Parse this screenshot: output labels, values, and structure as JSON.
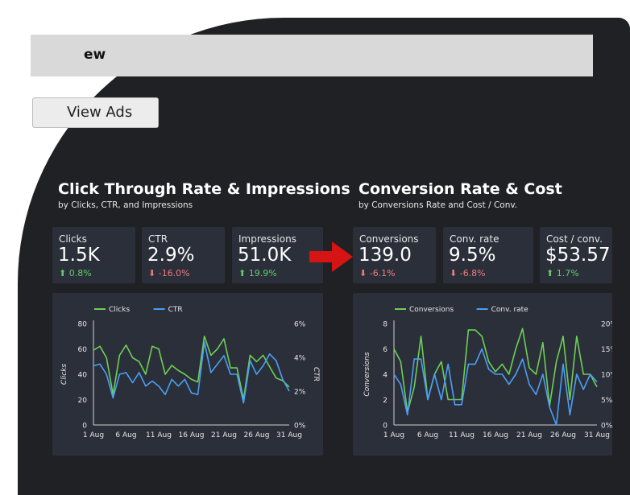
{
  "header": {
    "title_fragment": "ew",
    "view_ads_label": "View Ads"
  },
  "colors": {
    "panel": "#202124",
    "card": "#2b2f3a",
    "series_green": "#6ecf55",
    "series_blue": "#4a9ff5",
    "up": "#5fcf6b",
    "down": "#f07b7b",
    "arrow": "#d61414"
  },
  "sections": [
    {
      "title": "Click Through Rate & Impressions",
      "subtitle": "by Clicks, CTR, and Impressions",
      "scorecards": [
        {
          "label": "Clicks",
          "value": "1.5K",
          "change": "0.8%",
          "direction": "up"
        },
        {
          "label": "CTR",
          "value": "2.9%",
          "change": "-16.0%",
          "direction": "down"
        },
        {
          "label": "Impressions",
          "value": "51.0K",
          "change": "19.9%",
          "direction": "up"
        }
      ]
    },
    {
      "title": "Conversion Rate & Cost",
      "subtitle": "by Conversions Rate and Cost / Conv.",
      "scorecards": [
        {
          "label": "Conversions",
          "value": "139.0",
          "change": "-6.1%",
          "direction": "down"
        },
        {
          "label": "Conv. rate",
          "value": "9.5%",
          "change": "-6.8%",
          "direction": "down"
        },
        {
          "label": "Cost / conv.",
          "value": "$53.57",
          "change": "1.7%",
          "direction": "up"
        }
      ]
    }
  ],
  "chart_data": [
    {
      "type": "line",
      "x": [
        "1 Aug",
        "2 Aug",
        "3 Aug",
        "4 Aug",
        "5 Aug",
        "6 Aug",
        "7 Aug",
        "8 Aug",
        "9 Aug",
        "10 Aug",
        "11 Aug",
        "12 Aug",
        "13 Aug",
        "14 Aug",
        "15 Aug",
        "16 Aug",
        "17 Aug",
        "18 Aug",
        "19 Aug",
        "20 Aug",
        "21 Aug",
        "22 Aug",
        "23 Aug",
        "24 Aug",
        "25 Aug",
        "26 Aug",
        "27 Aug",
        "28 Aug",
        "29 Aug",
        "30 Aug",
        "31 Aug"
      ],
      "xticks": [
        "1 Aug",
        "6 Aug",
        "11 Aug",
        "16 Aug",
        "21 Aug",
        "26 Aug",
        "31 Aug"
      ],
      "ylabel": "Clicks",
      "y2label": "CTR",
      "ylim": [
        0,
        80
      ],
      "yticks": [
        "0",
        "20",
        "40",
        "60",
        "80"
      ],
      "y2lim": [
        0,
        6
      ],
      "y2ticks": [
        "0%",
        "2%",
        "4%",
        "6%"
      ],
      "legend": "top",
      "series": [
        {
          "name": "Clicks",
          "axis": "left",
          "color": "#6ecf55",
          "values": [
            59,
            62,
            53,
            24,
            55,
            63,
            53,
            50,
            40,
            62,
            60,
            40,
            47,
            43,
            40,
            36,
            34,
            70,
            55,
            60,
            68,
            45,
            45,
            20,
            55,
            50,
            55,
            46,
            37,
            35,
            30
          ]
        },
        {
          "name": "CTR",
          "axis": "right",
          "color": "#4a9ff5",
          "values": [
            3.5,
            3.6,
            3.0,
            1.6,
            3.0,
            3.1,
            2.5,
            3.1,
            2.3,
            2.6,
            2.3,
            1.8,
            2.7,
            2.3,
            2.7,
            1.9,
            1.8,
            4.9,
            3.1,
            3.6,
            4.1,
            3.0,
            3.0,
            1.3,
            3.8,
            3.0,
            3.5,
            4.2,
            3.8,
            2.7,
            2.0
          ]
        }
      ]
    },
    {
      "type": "line",
      "x": [
        "1 Aug",
        "2 Aug",
        "3 Aug",
        "4 Aug",
        "5 Aug",
        "6 Aug",
        "7 Aug",
        "8 Aug",
        "9 Aug",
        "10 Aug",
        "11 Aug",
        "12 Aug",
        "13 Aug",
        "14 Aug",
        "15 Aug",
        "16 Aug",
        "17 Aug",
        "18 Aug",
        "19 Aug",
        "20 Aug",
        "21 Aug",
        "22 Aug",
        "23 Aug",
        "24 Aug",
        "25 Aug",
        "26 Aug",
        "27 Aug",
        "28 Aug",
        "29 Aug",
        "30 Aug",
        "31 Aug"
      ],
      "xticks": [
        "1 Aug",
        "6 Aug",
        "11 Aug",
        "16 Aug",
        "21 Aug",
        "26 Aug",
        "31 Aug"
      ],
      "ylabel": "Conversions",
      "ylim": [
        0,
        8
      ],
      "yticks": [
        "0",
        "2",
        "4",
        "6",
        "8"
      ],
      "y2lim": [
        0,
        20
      ],
      "y2ticks": [
        "0%",
        "5%",
        "10%",
        "15%",
        "20%"
      ],
      "legend": "top",
      "series": [
        {
          "name": "Conversions",
          "axis": "left",
          "color": "#6ecf55",
          "values": [
            6,
            5,
            1,
            3,
            7,
            2,
            4,
            5,
            2,
            2,
            2,
            7.5,
            7.5,
            7,
            5,
            4.2,
            4.8,
            4,
            6,
            7.6,
            4.5,
            4,
            6.5,
            1.5,
            5,
            7,
            2,
            7,
            4,
            4,
            3
          ]
        },
        {
          "name": "Conv. rate",
          "axis": "right",
          "color": "#4a9ff5",
          "values": [
            10,
            8,
            2,
            13,
            13,
            5,
            10,
            5,
            12,
            4,
            4,
            12,
            12,
            15,
            11,
            10,
            10,
            8,
            10,
            13,
            8,
            6,
            10,
            3.5,
            0,
            12,
            2,
            10,
            7,
            10,
            8.5
          ]
        }
      ]
    }
  ]
}
